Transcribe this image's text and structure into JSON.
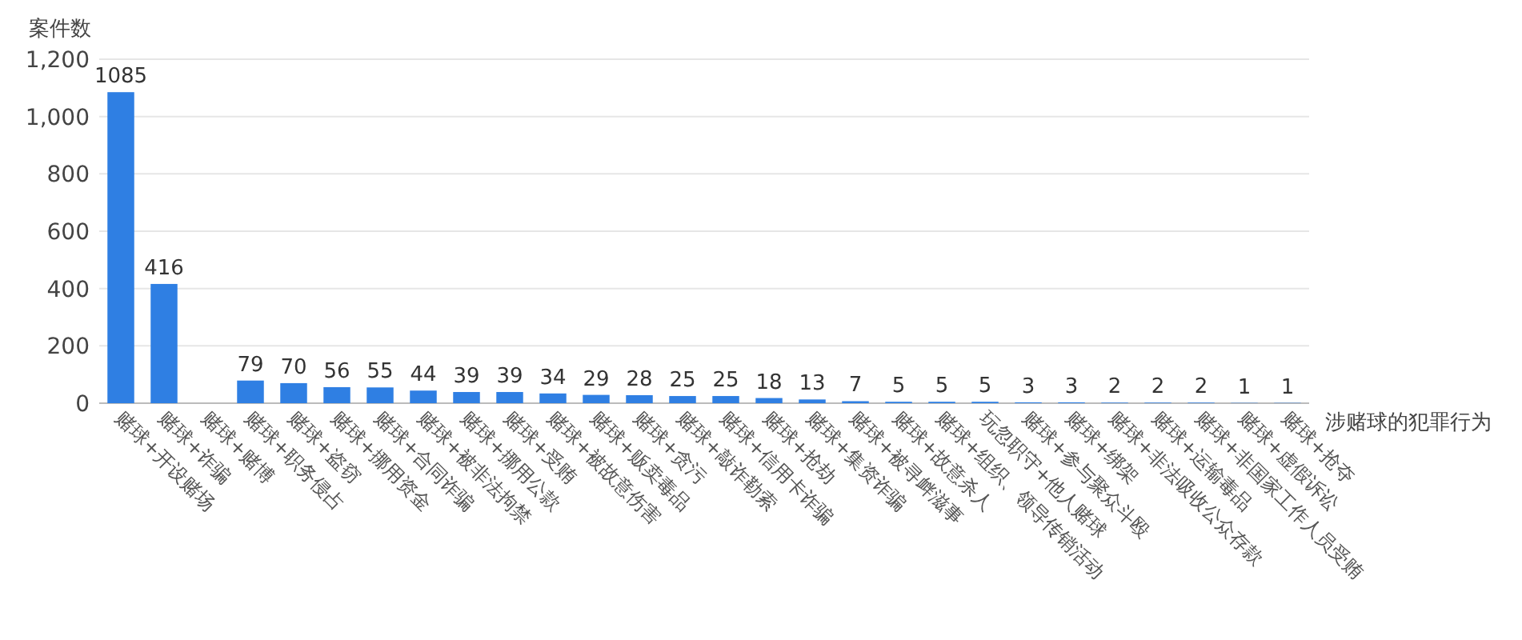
{
  "chart_data": {
    "type": "bar",
    "ylabel": "案件数",
    "xlabel": "涉赌球的犯罪行为",
    "categories": [
      "赌球+开设赌场",
      "赌球+诈骗",
      "赌球+赌博",
      "赌球+职务侵占",
      "赌球+盗窃",
      "赌球+挪用资金",
      "赌球+合同诈骗",
      "赌球+被非法拘禁",
      "赌球+挪用公款",
      "赌球+受贿",
      "赌球+被故意伤害",
      "赌球+贩卖毒品",
      "赌球+贪污",
      "赌球+敲诈勒索",
      "赌球+信用卡诈骗",
      "赌球+抢劫",
      "赌球+集资诈骗",
      "赌球+被寻衅滋事",
      "赌球+故意杀人",
      "赌球+组织、领导传销活动",
      "玩忽职守+他人赌球",
      "赌球+参与聚众斗殴",
      "赌球+绑架",
      "赌球+非法吸收公众存款",
      "赌球+运输毒品",
      "赌球+非国家工作人员受贿",
      "赌球+虚假诉讼",
      "赌球+抢夺"
    ],
    "values": [
      1085,
      416,
      null,
      79,
      70,
      56,
      55,
      44,
      39,
      39,
      34,
      29,
      28,
      25,
      25,
      18,
      13,
      7,
      5,
      5,
      5,
      3,
      3,
      2,
      2,
      2,
      1,
      1
    ],
    "color": "#2f7fe3",
    "ylim": [
      0,
      1200
    ],
    "yticks": [
      0,
      200,
      400,
      600,
      800,
      {
        "value": 1000,
        "label": "1,000"
      },
      {
        "value": 1200,
        "label": "1,200"
      }
    ],
    "grid": "y",
    "data_labels": true
  }
}
